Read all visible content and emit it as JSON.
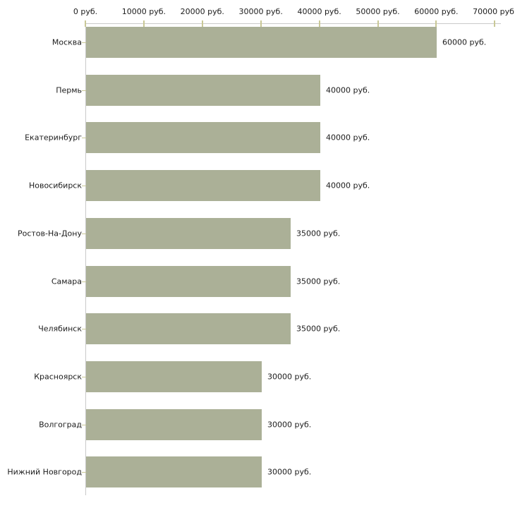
{
  "chart_data": {
    "type": "bar",
    "orientation": "horizontal",
    "title": "",
    "xlabel": "",
    "ylabel": "",
    "unit": "руб.",
    "xlim": [
      0,
      70000
    ],
    "grid": false,
    "legend": false,
    "categories": [
      "Москва",
      "Пермь",
      "Екатеринбург",
      "Новосибирск",
      "Ростов-На-Дону",
      "Самара",
      "Челябинск",
      "Красноярск",
      "Волгоград",
      "Нижний Новгород"
    ],
    "values": [
      60000,
      40000,
      40000,
      40000,
      35000,
      35000,
      35000,
      30000,
      30000,
      30000
    ],
    "value_labels": [
      "60000 руб.",
      "40000 руб.",
      "40000 руб.",
      "40000 руб.",
      "35000 руб.",
      "35000 руб.",
      "35000 руб.",
      "30000 руб.",
      "30000 руб.",
      "30000 руб."
    ],
    "x_tick_values": [
      0,
      10000,
      20000,
      30000,
      40000,
      50000,
      60000,
      70000
    ],
    "x_tick_labels": [
      "0 руб.",
      "10000 руб.",
      "20000 руб.",
      "30000 руб.",
      "40000 руб.",
      "50000 руб.",
      "60000 руб.",
      "70000 руб."
    ],
    "colors": {
      "bar": "#abb097",
      "axis_line": "#c9c9c9",
      "tick": "#c9c896",
      "text": "#1c1c1c",
      "background": "#ffffff"
    }
  }
}
